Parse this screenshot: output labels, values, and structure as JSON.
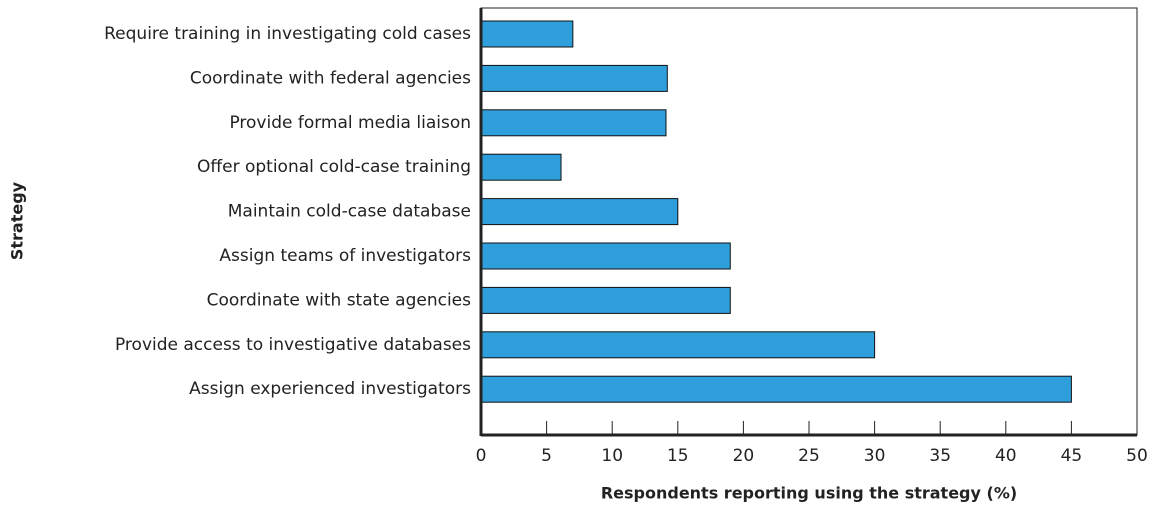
{
  "chart_data": {
    "type": "bar",
    "orientation": "horizontal",
    "xlabel": "Respondents reporting using the strategy (%)",
    "ylabel": "Strategy",
    "categories": [
      "Require training in investigating cold cases",
      "Coordinate with federal agencies",
      "Provide formal media liaison",
      "Offer optional cold-case training",
      "Maintain cold-case database",
      "Assign teams of investigators",
      "Coordinate with state agencies",
      "Provide access to investigative databases",
      "Assign experienced investigators"
    ],
    "values": [
      7,
      14.2,
      14.1,
      6.1,
      15,
      19,
      19,
      30,
      45
    ],
    "color": "#2e9fdb",
    "xlim": [
      0,
      50
    ],
    "xticks": [
      0,
      5,
      10,
      15,
      20,
      25,
      30,
      35,
      40,
      45,
      50
    ]
  }
}
